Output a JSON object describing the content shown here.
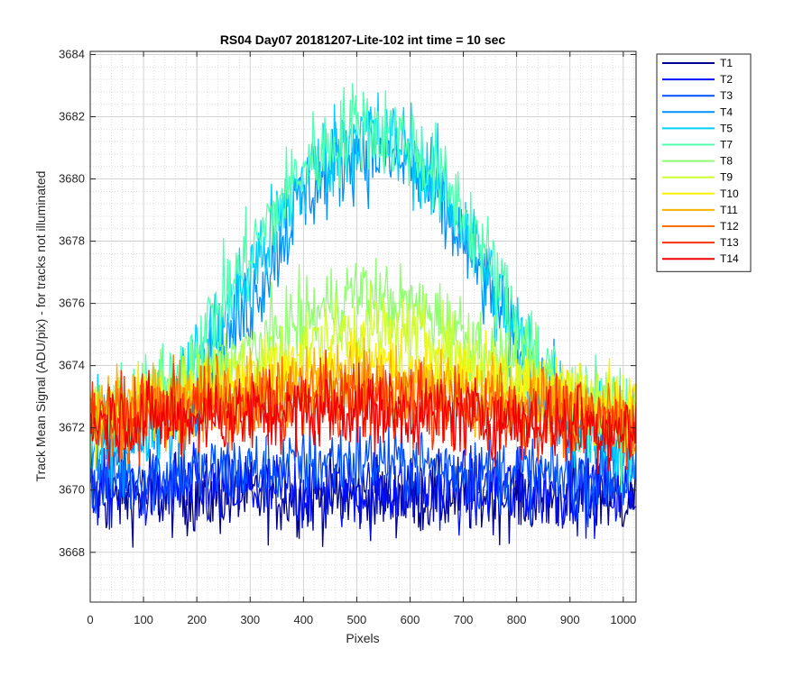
{
  "chart_data": {
    "type": "line",
    "title": "RS04 Day07 20181207-Lite-102 int time = 10 sec",
    "xlabel": "Pixels",
    "ylabel": "Track Mean Signal (ADU/pix) - for tracks not illuminated",
    "xlim": [
      0,
      1024
    ],
    "ylim": [
      3666.4,
      3684.1
    ],
    "xticks": [
      0,
      100,
      200,
      300,
      400,
      500,
      600,
      700,
      800,
      900,
      1000
    ],
    "yticks": [
      3668,
      3670,
      3672,
      3674,
      3676,
      3678,
      3680,
      3682,
      3684
    ],
    "grid": true,
    "minor_grid": true,
    "legend_position": "outside-right",
    "series": [
      {
        "name": "T1",
        "color": "#00008f",
        "profile": [
          [
            0,
            3669.8
          ],
          [
            1024,
            3669.8
          ]
        ],
        "noise": 1.0
      },
      {
        "name": "T2",
        "color": "#0010ff",
        "profile": [
          [
            0,
            3670.0
          ],
          [
            1024,
            3670.0
          ]
        ],
        "noise": 1.0
      },
      {
        "name": "T3",
        "color": "#0050ff",
        "profile": [
          [
            0,
            3670.4
          ],
          [
            250,
            3670.6
          ],
          [
            500,
            3671.0
          ],
          [
            750,
            3670.6
          ],
          [
            1024,
            3670.3
          ]
        ],
        "noise": 1.0
      },
      {
        "name": "T4",
        "color": "#0090ff",
        "profile": [
          [
            0,
            3671.0
          ],
          [
            150,
            3672.0
          ],
          [
            300,
            3676.0
          ],
          [
            400,
            3679.5
          ],
          [
            500,
            3681.0
          ],
          [
            600,
            3680.5
          ],
          [
            700,
            3678.0
          ],
          [
            800,
            3674.5
          ],
          [
            900,
            3672.0
          ],
          [
            1024,
            3671.0
          ]
        ],
        "noise": 1.2
      },
      {
        "name": "T5",
        "color": "#00cfff",
        "profile": [
          [
            0,
            3671.5
          ],
          [
            150,
            3672.6
          ],
          [
            300,
            3677.0
          ],
          [
            400,
            3680.0
          ],
          [
            500,
            3681.6
          ],
          [
            600,
            3681.0
          ],
          [
            700,
            3678.6
          ],
          [
            800,
            3675.0
          ],
          [
            900,
            3672.4
          ],
          [
            1024,
            3671.5
          ]
        ],
        "noise": 1.2
      },
      {
        "name": "T7",
        "color": "#50ffaf",
        "profile": [
          [
            0,
            3672.0
          ],
          [
            150,
            3673.2
          ],
          [
            300,
            3677.6
          ],
          [
            400,
            3680.4
          ],
          [
            500,
            3681.8
          ],
          [
            600,
            3681.2
          ],
          [
            700,
            3679.0
          ],
          [
            800,
            3675.4
          ],
          [
            900,
            3672.8
          ],
          [
            1024,
            3672.0
          ]
        ],
        "noise": 1.2
      },
      {
        "name": "T8",
        "color": "#8fff70",
        "profile": [
          [
            0,
            3672.2
          ],
          [
            200,
            3673.4
          ],
          [
            350,
            3675.0
          ],
          [
            500,
            3676.4
          ],
          [
            650,
            3675.6
          ],
          [
            800,
            3674.0
          ],
          [
            1024,
            3672.4
          ]
        ],
        "noise": 1.0
      },
      {
        "name": "T9",
        "color": "#cfff30",
        "profile": [
          [
            0,
            3672.3
          ],
          [
            200,
            3673.2
          ],
          [
            350,
            3674.2
          ],
          [
            500,
            3675.2
          ],
          [
            650,
            3674.8
          ],
          [
            800,
            3673.6
          ],
          [
            1024,
            3672.4
          ]
        ],
        "noise": 1.0
      },
      {
        "name": "T10",
        "color": "#ffef00",
        "profile": [
          [
            0,
            3672.4
          ],
          [
            250,
            3673.2
          ],
          [
            500,
            3674.2
          ],
          [
            750,
            3673.4
          ],
          [
            1024,
            3672.5
          ]
        ],
        "noise": 1.0
      },
      {
        "name": "T11",
        "color": "#ffaf00",
        "profile": [
          [
            0,
            3672.5
          ],
          [
            250,
            3673.0
          ],
          [
            500,
            3673.6
          ],
          [
            750,
            3673.0
          ],
          [
            1024,
            3672.4
          ]
        ],
        "noise": 1.0
      },
      {
        "name": "T12",
        "color": "#ff7000",
        "profile": [
          [
            0,
            3672.4
          ],
          [
            250,
            3672.8
          ],
          [
            500,
            3673.2
          ],
          [
            750,
            3672.8
          ],
          [
            1024,
            3672.2
          ]
        ],
        "noise": 1.0
      },
      {
        "name": "T13",
        "color": "#ff3000",
        "profile": [
          [
            0,
            3672.3
          ],
          [
            250,
            3672.6
          ],
          [
            500,
            3672.9
          ],
          [
            750,
            3672.5
          ],
          [
            1024,
            3672.0
          ]
        ],
        "noise": 1.0
      },
      {
        "name": "T14",
        "color": "#ef0000",
        "profile": [
          [
            0,
            3672.2
          ],
          [
            250,
            3672.4
          ],
          [
            500,
            3672.6
          ],
          [
            750,
            3672.3
          ],
          [
            1024,
            3671.9
          ]
        ],
        "noise": 1.0
      }
    ]
  }
}
